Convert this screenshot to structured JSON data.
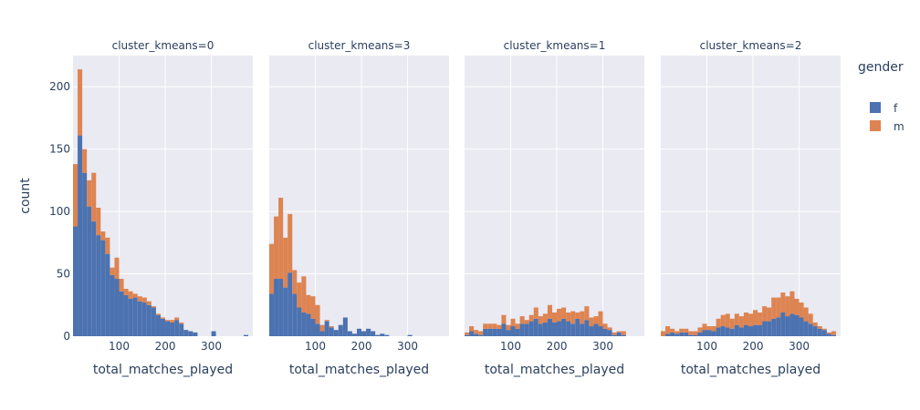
{
  "chart_data": {
    "type": "bar",
    "barmode": "stack",
    "grid": true,
    "legend_placement": "right",
    "legend_title": "gender",
    "xlabel": "total_matches_played",
    "ylabel": "count",
    "xlim": [
      0,
      390
    ],
    "ylim": [
      0,
      225
    ],
    "y_ticks": [
      0,
      50,
      100,
      150,
      200
    ],
    "x_ticks": [
      100,
      200,
      300
    ],
    "bin_width": 10,
    "series_names": [
      "f",
      "m"
    ],
    "series_colors": [
      "#4c72b0",
      "#dd8452"
    ],
    "plot_bg": "#eaeaf2",
    "panels": [
      {
        "title": "cluster_kmeans=0",
        "bin_starts": [
          0,
          10,
          20,
          30,
          40,
          50,
          60,
          70,
          80,
          90,
          100,
          110,
          120,
          130,
          140,
          150,
          160,
          170,
          180,
          190,
          200,
          210,
          220,
          230,
          240,
          250,
          260,
          270,
          280,
          290,
          300,
          310,
          320,
          330,
          340,
          350,
          360,
          370
        ],
        "f": [
          88,
          161,
          131,
          104,
          92,
          81,
          77,
          66,
          49,
          46,
          36,
          33,
          30,
          31,
          28,
          27,
          25,
          23,
          17,
          14,
          12,
          11,
          13,
          10,
          5,
          4,
          3,
          0,
          0,
          0,
          4,
          0,
          0,
          0,
          0,
          0,
          0,
          1
        ],
        "m": [
          50,
          53,
          19,
          21,
          39,
          22,
          7,
          13,
          6,
          17,
          10,
          5,
          6,
          3,
          4,
          4,
          3,
          1,
          1,
          1,
          1,
          2,
          2,
          1,
          0,
          0,
          0,
          0,
          0,
          0,
          0,
          0,
          0,
          0,
          0,
          0,
          0,
          0
        ]
      },
      {
        "title": "cluster_kmeans=3",
        "bin_starts": [
          0,
          10,
          20,
          30,
          40,
          50,
          60,
          70,
          80,
          90,
          100,
          110,
          120,
          130,
          140,
          150,
          160,
          170,
          180,
          190,
          200,
          210,
          220,
          230,
          240,
          250,
          260,
          270,
          280,
          290,
          300,
          310,
          320,
          330,
          340,
          350,
          360,
          370
        ],
        "f": [
          34,
          46,
          46,
          39,
          51,
          34,
          23,
          19,
          18,
          14,
          10,
          4,
          12,
          7,
          5,
          9,
          15,
          4,
          2,
          6,
          4,
          6,
          4,
          1,
          2,
          1,
          0,
          0,
          0,
          0,
          1,
          0,
          0,
          0,
          0,
          0,
          0,
          0
        ],
        "m": [
          40,
          50,
          65,
          40,
          47,
          19,
          20,
          29,
          15,
          18,
          15,
          5,
          1,
          1,
          0,
          0,
          0,
          0,
          0,
          0,
          0,
          0,
          0,
          0,
          0,
          0,
          0,
          0,
          0,
          0,
          0,
          0,
          0,
          0,
          0,
          0,
          0,
          0
        ]
      },
      {
        "title": "cluster_kmeans=1",
        "bin_starts": [
          0,
          10,
          20,
          30,
          40,
          50,
          60,
          70,
          80,
          90,
          100,
          110,
          120,
          130,
          140,
          150,
          160,
          170,
          180,
          190,
          200,
          210,
          220,
          230,
          240,
          250,
          260,
          270,
          280,
          290,
          300,
          310,
          320,
          330,
          340,
          350,
          360,
          370
        ],
        "f": [
          1,
          4,
          2,
          1,
          6,
          6,
          6,
          6,
          10,
          5,
          8,
          6,
          10,
          10,
          12,
          14,
          10,
          11,
          14,
          11,
          12,
          14,
          12,
          10,
          14,
          10,
          13,
          8,
          10,
          8,
          6,
          5,
          1,
          3,
          1,
          0,
          0,
          0
        ],
        "m": [
          2,
          4,
          3,
          3,
          4,
          4,
          4,
          3,
          7,
          4,
          6,
          4,
          6,
          3,
          5,
          9,
          6,
          7,
          11,
          8,
          10,
          9,
          7,
          10,
          5,
          10,
          11,
          7,
          6,
          12,
          4,
          2,
          2,
          1,
          3,
          0,
          0,
          0
        ]
      },
      {
        "title": "cluster_kmeans=2",
        "bin_starts": [
          0,
          10,
          20,
          30,
          40,
          50,
          60,
          70,
          80,
          90,
          100,
          110,
          120,
          130,
          140,
          150,
          160,
          170,
          180,
          190,
          200,
          210,
          220,
          230,
          240,
          250,
          260,
          270,
          280,
          290,
          300,
          310,
          320,
          330,
          340,
          350,
          360,
          370
        ],
        "f": [
          0,
          2,
          3,
          2,
          3,
          3,
          1,
          1,
          3,
          5,
          5,
          4,
          7,
          8,
          7,
          6,
          9,
          7,
          9,
          8,
          9,
          9,
          12,
          12,
          14,
          15,
          19,
          16,
          18,
          17,
          15,
          12,
          10,
          8,
          6,
          5,
          2,
          1
        ],
        "m": [
          4,
          6,
          3,
          2,
          3,
          3,
          3,
          3,
          4,
          5,
          3,
          4,
          7,
          9,
          11,
          8,
          9,
          9,
          10,
          10,
          12,
          10,
          12,
          11,
          17,
          16,
          16,
          16,
          18,
          13,
          12,
          11,
          8,
          3,
          2,
          1,
          1,
          3
        ]
      }
    ]
  }
}
